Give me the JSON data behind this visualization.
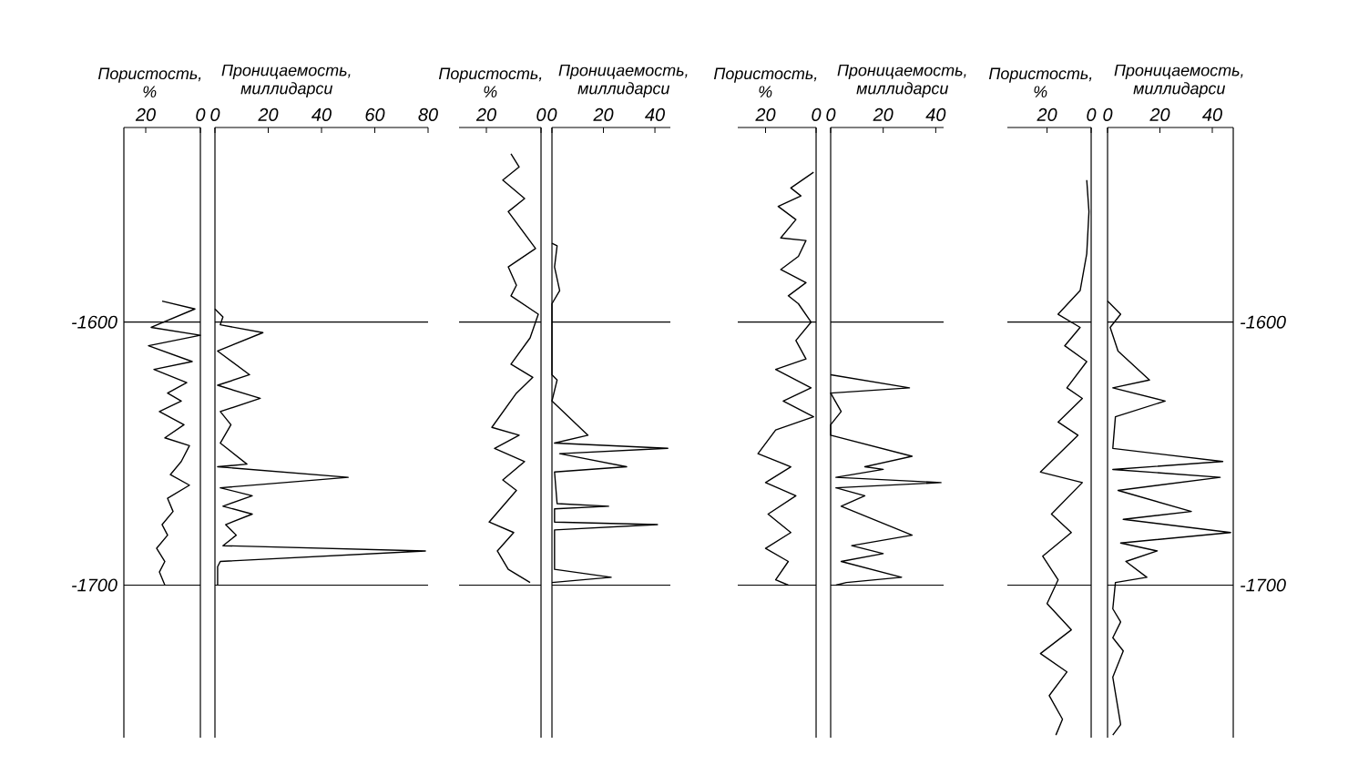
{
  "chart_data": [
    {
      "type": "line",
      "xlabel": "Пористость, %",
      "xlim": [
        28,
        0
      ],
      "xticks": [
        20,
        0
      ],
      "ylim": [
        -1758,
        -1526
      ],
      "yticks": [
        -1600,
        -1700
      ],
      "ref_lines": [
        {
          "axis": "y",
          "value": -1600
        },
        {
          "axis": "y",
          "value": -1700
        }
      ],
      "series": [
        {
          "color": "#000000",
          "x": [
            14,
            2,
            18,
            0,
            19,
            3,
            17,
            5,
            12,
            7,
            15,
            6,
            13,
            4,
            7,
            11,
            4,
            12,
            10,
            14,
            12,
            16,
            13,
            15,
            13
          ],
          "values": [
            -1592,
            -1595,
            -1602,
            -1605,
            -1609,
            -1615,
            -1618,
            -1623,
            -1627,
            -1630,
            -1634,
            -1639,
            -1644,
            -1647,
            -1653,
            -1658,
            -1662,
            -1667,
            -1672,
            -1677,
            -1681,
            -1686,
            -1691,
            -1695,
            -1700
          ]
        }
      ]
    },
    {
      "type": "line",
      "xlabel": "Проницаемость, миллидарси",
      "xlim": [
        0,
        80
      ],
      "xticks": [
        0,
        20,
        40,
        60,
        80
      ],
      "ylim": [
        -1758,
        -1526
      ],
      "tick_labels": "x",
      "ref_lines": [
        {
          "axis": "y",
          "value": -1600
        },
        {
          "axis": "y",
          "value": -1700
        }
      ],
      "series": [
        {
          "color": "#000000",
          "x": [
            0,
            3,
            2,
            18,
            1,
            13,
            1,
            17,
            2,
            6,
            2,
            12,
            1,
            50,
            2,
            14,
            3,
            14,
            4,
            8,
            3,
            79,
            2,
            1,
            1
          ],
          "values": [
            -1595,
            -1598,
            -1601,
            -1604,
            -1611,
            -1620,
            -1624,
            -1629,
            -1634,
            -1639,
            -1646,
            -1654,
            -1655,
            -1659,
            -1663,
            -1666,
            -1670,
            -1673,
            -1677,
            -1681,
            -1685,
            -1687,
            -1691,
            -1693,
            -1700
          ]
        }
      ]
    },
    {
      "type": "line",
      "xlabel": "Пористость, %",
      "xlim": [
        30,
        0
      ],
      "xticks": [
        20,
        0
      ],
      "ylim": [
        -1758,
        -1526
      ],
      "tick_labels": "x",
      "ref_lines": [
        {
          "axis": "y",
          "value": -1600
        },
        {
          "axis": "y",
          "value": -1700
        }
      ],
      "series": [
        {
          "color": "#000000",
          "x": [
            11,
            8,
            14,
            6,
            12,
            2,
            12,
            9,
            11,
            1,
            4,
            11,
            3,
            9,
            18,
            8,
            17,
            6,
            14,
            9,
            19,
            10,
            16,
            12,
            4
          ],
          "values": [
            -1536,
            -1541,
            -1546,
            -1553,
            -1558,
            -1572,
            -1579,
            -1586,
            -1590,
            -1597,
            -1606,
            -1616,
            -1621,
            -1627,
            -1640,
            -1643,
            -1648,
            -1653,
            -1660,
            -1664,
            -1676,
            -1680,
            -1687,
            -1694,
            -1699
          ]
        }
      ]
    },
    {
      "type": "line",
      "xlabel": "Проницаемость, миллидарси",
      "xlim": [
        0,
        46
      ],
      "xticks": [
        0,
        20,
        40
      ],
      "ylim": [
        -1758,
        -1526
      ],
      "tick_labels": "x",
      "ref_lines": [
        {
          "axis": "y",
          "value": -1600
        },
        {
          "axis": "y",
          "value": -1700
        }
      ],
      "series": [
        {
          "color": "#000000",
          "x": [
            0,
            2,
            1,
            3,
            0,
            0,
            2,
            0,
            14,
            1,
            45,
            3,
            29,
            1,
            2,
            22,
            1,
            1,
            41,
            1,
            1,
            23,
            0
          ],
          "values": [
            -1570,
            -1571,
            -1579,
            -1588,
            -1593,
            -1620,
            -1622,
            -1630,
            -1643,
            -1646,
            -1648,
            -1650,
            -1655,
            -1657,
            -1669,
            -1670,
            -1671,
            -1676,
            -1677,
            -1679,
            -1694,
            -1697,
            -1699
          ]
        }
      ]
    },
    {
      "type": "line",
      "xlabel": "Пористость, %",
      "xlim": [
        31,
        0
      ],
      "xticks": [
        20,
        0
      ],
      "ylim": [
        -1758,
        -1526
      ],
      "tick_labels": "x",
      "ref_lines": [
        {
          "axis": "y",
          "value": -1600
        },
        {
          "axis": "y",
          "value": -1700
        }
      ],
      "series": [
        {
          "color": "#000000",
          "x": [
            1,
            10,
            6,
            15,
            8,
            14,
            4,
            7,
            14,
            4,
            11,
            7,
            2,
            8,
            4,
            16,
            2,
            13,
            1,
            16,
            23,
            10,
            20,
            8,
            19,
            10,
            20,
            11,
            16,
            11
          ],
          "values": [
            -1543,
            -1549,
            -1552,
            -1556,
            -1561,
            -1568,
            -1569,
            -1575,
            -1580,
            -1585,
            -1590,
            -1593,
            -1600,
            -1607,
            -1614,
            -1618,
            -1625,
            -1630,
            -1636,
            -1641,
            -1650,
            -1655,
            -1661,
            -1666,
            -1673,
            -1680,
            -1686,
            -1691,
            -1698,
            -1700
          ]
        }
      ]
    },
    {
      "type": "line",
      "xlabel": "Проницаемость, миллидарси",
      "xlim": [
        0,
        43
      ],
      "xticks": [
        0,
        20,
        40
      ],
      "ylim": [
        -1758,
        -1526
      ],
      "tick_labels": "x",
      "ref_lines": [
        {
          "axis": "y",
          "value": -1600
        },
        {
          "axis": "y",
          "value": -1700
        }
      ],
      "series": [
        {
          "color": "#000000",
          "x": [
            0,
            30,
            0,
            4,
            0,
            0,
            31,
            13,
            20,
            2,
            42,
            2,
            13,
            4,
            31,
            8,
            20,
            4,
            27,
            6,
            2
          ],
          "values": [
            -1620,
            -1625,
            -1627,
            -1634,
            -1639,
            -1643,
            -1651,
            -1655,
            -1656,
            -1659,
            -1661,
            -1663,
            -1666,
            -1670,
            -1681,
            -1685,
            -1688,
            -1691,
            -1697,
            -1699,
            -1700
          ]
        }
      ]
    },
    {
      "type": "line",
      "xlabel": "Пористость, %",
      "xlim": [
        38,
        0
      ],
      "xticks": [
        20,
        0
      ],
      "ylim": [
        -1758,
        -1526
      ],
      "tick_labels": "x",
      "ref_lines": [
        {
          "axis": "y",
          "value": -1600
        },
        {
          "axis": "y",
          "value": -1700
        }
      ],
      "series": [
        {
          "color": "#000000",
          "x": [
            2,
            1,
            2,
            5,
            15,
            5,
            12,
            2,
            11,
            4,
            15,
            6,
            23,
            4,
            18,
            9,
            22,
            15,
            20,
            9,
            23,
            11,
            19,
            13,
            16
          ],
          "values": [
            -1546,
            -1558,
            -1574,
            -1588,
            -1597,
            -1602,
            -1609,
            -1615,
            -1625,
            -1629,
            -1638,
            -1643,
            -1657,
            -1661,
            -1673,
            -1680,
            -1689,
            -1698,
            -1707,
            -1717,
            -1726,
            -1733,
            -1742,
            -1751,
            -1757
          ]
        }
      ]
    },
    {
      "type": "line",
      "xlabel": "Проницаемость, миллидарси",
      "xlim": [
        0,
        48
      ],
      "xticks": [
        0,
        20,
        40
      ],
      "ylim": [
        -1758,
        -1526
      ],
      "yticks": [
        -1600,
        -1700
      ],
      "ref_lines": [
        {
          "axis": "y",
          "value": -1600
        },
        {
          "axis": "y",
          "value": -1700
        }
      ],
      "series": [
        {
          "color": "#000000",
          "x": [
            0,
            5,
            1,
            4,
            16,
            2,
            22,
            3,
            2,
            44,
            2,
            43,
            4,
            32,
            6,
            47,
            5,
            19,
            7,
            15,
            3,
            2,
            5,
            2,
            6,
            2,
            5,
            2
          ],
          "values": [
            -1592,
            -1597,
            -1602,
            -1611,
            -1622,
            -1625,
            -1630,
            -1636,
            -1648,
            -1653,
            -1656,
            -1659,
            -1664,
            -1672,
            -1675,
            -1680,
            -1684,
            -1687,
            -1691,
            -1697,
            -1699,
            -1709,
            -1714,
            -1720,
            -1725,
            -1735,
            -1753,
            -1757
          ]
        }
      ]
    }
  ]
}
